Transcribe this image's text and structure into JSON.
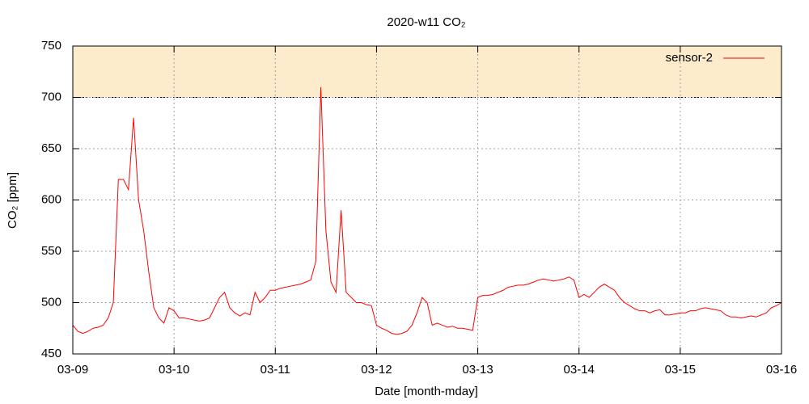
{
  "chart_data": {
    "type": "line",
    "title": "2020-w11 CO₂",
    "x_label": "Date [month-mday]",
    "y_label": "CO₂ [ppm]",
    "x": [
      0,
      0.05,
      0.1,
      0.15,
      0.2,
      0.25,
      0.3,
      0.35,
      0.4,
      0.45,
      0.5,
      0.55,
      0.6,
      0.65,
      0.7,
      0.75,
      0.8,
      0.85,
      0.9,
      0.95,
      1,
      1.05,
      1.1,
      1.15,
      1.2,
      1.25,
      1.3,
      1.35,
      1.4,
      1.45,
      1.5,
      1.55,
      1.6,
      1.65,
      1.7,
      1.75,
      1.8,
      1.85,
      1.9,
      1.95,
      2,
      2.05,
      2.1,
      2.15,
      2.2,
      2.25,
      2.3,
      2.35,
      2.4,
      2.45,
      2.5,
      2.55,
      2.6,
      2.65,
      2.7,
      2.75,
      2.8,
      2.85,
      2.9,
      2.95,
      3,
      3.05,
      3.1,
      3.15,
      3.2,
      3.25,
      3.3,
      3.35,
      3.4,
      3.45,
      3.5,
      3.55,
      3.6,
      3.65,
      3.7,
      3.75,
      3.8,
      3.85,
      3.9,
      3.95,
      4,
      4.05,
      4.1,
      4.15,
      4.2,
      4.25,
      4.3,
      4.35,
      4.4,
      4.45,
      4.5,
      4.55,
      4.6,
      4.65,
      4.7,
      4.75,
      4.8,
      4.85,
      4.9,
      4.95,
      5,
      5.05,
      5.1,
      5.15,
      5.2,
      5.25,
      5.3,
      5.35,
      5.4,
      5.45,
      5.5,
      5.55,
      5.6,
      5.65,
      5.7,
      5.75,
      5.8,
      5.85,
      5.9,
      5.95,
      6,
      6.05,
      6.1,
      6.15,
      6.2,
      6.25,
      6.3,
      6.35,
      6.4,
      6.45,
      6.5,
      6.55,
      6.6,
      6.65,
      6.7,
      6.75,
      6.8,
      6.85,
      6.9,
      6.95,
      7
    ],
    "series": [
      {
        "name": "sensor-2",
        "color": "#ff0000",
        "values": [
          478,
          472,
          470,
          472,
          475,
          476,
          478,
          485,
          500,
          620,
          620,
          610,
          680,
          600,
          570,
          530,
          495,
          485,
          480,
          495,
          492,
          485,
          485,
          484,
          483,
          482,
          483,
          485,
          495,
          505,
          510,
          495,
          490,
          487,
          490,
          488,
          510,
          500,
          505,
          512,
          512,
          514,
          515,
          516,
          517,
          518,
          520,
          522,
          540,
          710,
          570,
          520,
          510,
          590,
          510,
          505,
          500,
          500,
          498,
          497,
          478,
          475,
          473,
          470,
          469,
          470,
          472,
          478,
          490,
          505,
          500,
          478,
          480,
          478,
          476,
          477,
          475,
          475,
          474,
          473,
          505,
          507,
          507,
          508,
          510,
          512,
          515,
          516,
          517,
          517,
          518,
          520,
          522,
          523,
          522,
          521,
          522,
          523,
          525,
          522,
          505,
          508,
          505,
          510,
          515,
          518,
          515,
          512,
          505,
          500,
          497,
          494,
          492,
          492,
          490,
          492,
          493,
          488,
          488,
          489,
          490,
          490,
          492,
          492,
          494,
          495,
          494,
          493,
          492,
          488,
          486,
          486,
          485,
          486,
          487,
          486,
          488,
          490,
          495,
          497,
          500
        ]
      }
    ],
    "xlim": [
      0,
      7
    ],
    "xticks": [
      {
        "value": 0,
        "label": "03-09"
      },
      {
        "value": 1,
        "label": "03-10"
      },
      {
        "value": 2,
        "label": "03-11"
      },
      {
        "value": 3,
        "label": "03-12"
      },
      {
        "value": 4,
        "label": "03-13"
      },
      {
        "value": 5,
        "label": "03-14"
      },
      {
        "value": 6,
        "label": "03-15"
      },
      {
        "value": 7,
        "label": "03-16"
      }
    ],
    "ylim": [
      450,
      750
    ],
    "yticks": [
      450,
      500,
      550,
      600,
      650,
      700,
      750
    ],
    "highlight_range": [
      700,
      750
    ],
    "highlight_color": "#fdeccc",
    "grid": true,
    "legend": "top-right"
  }
}
